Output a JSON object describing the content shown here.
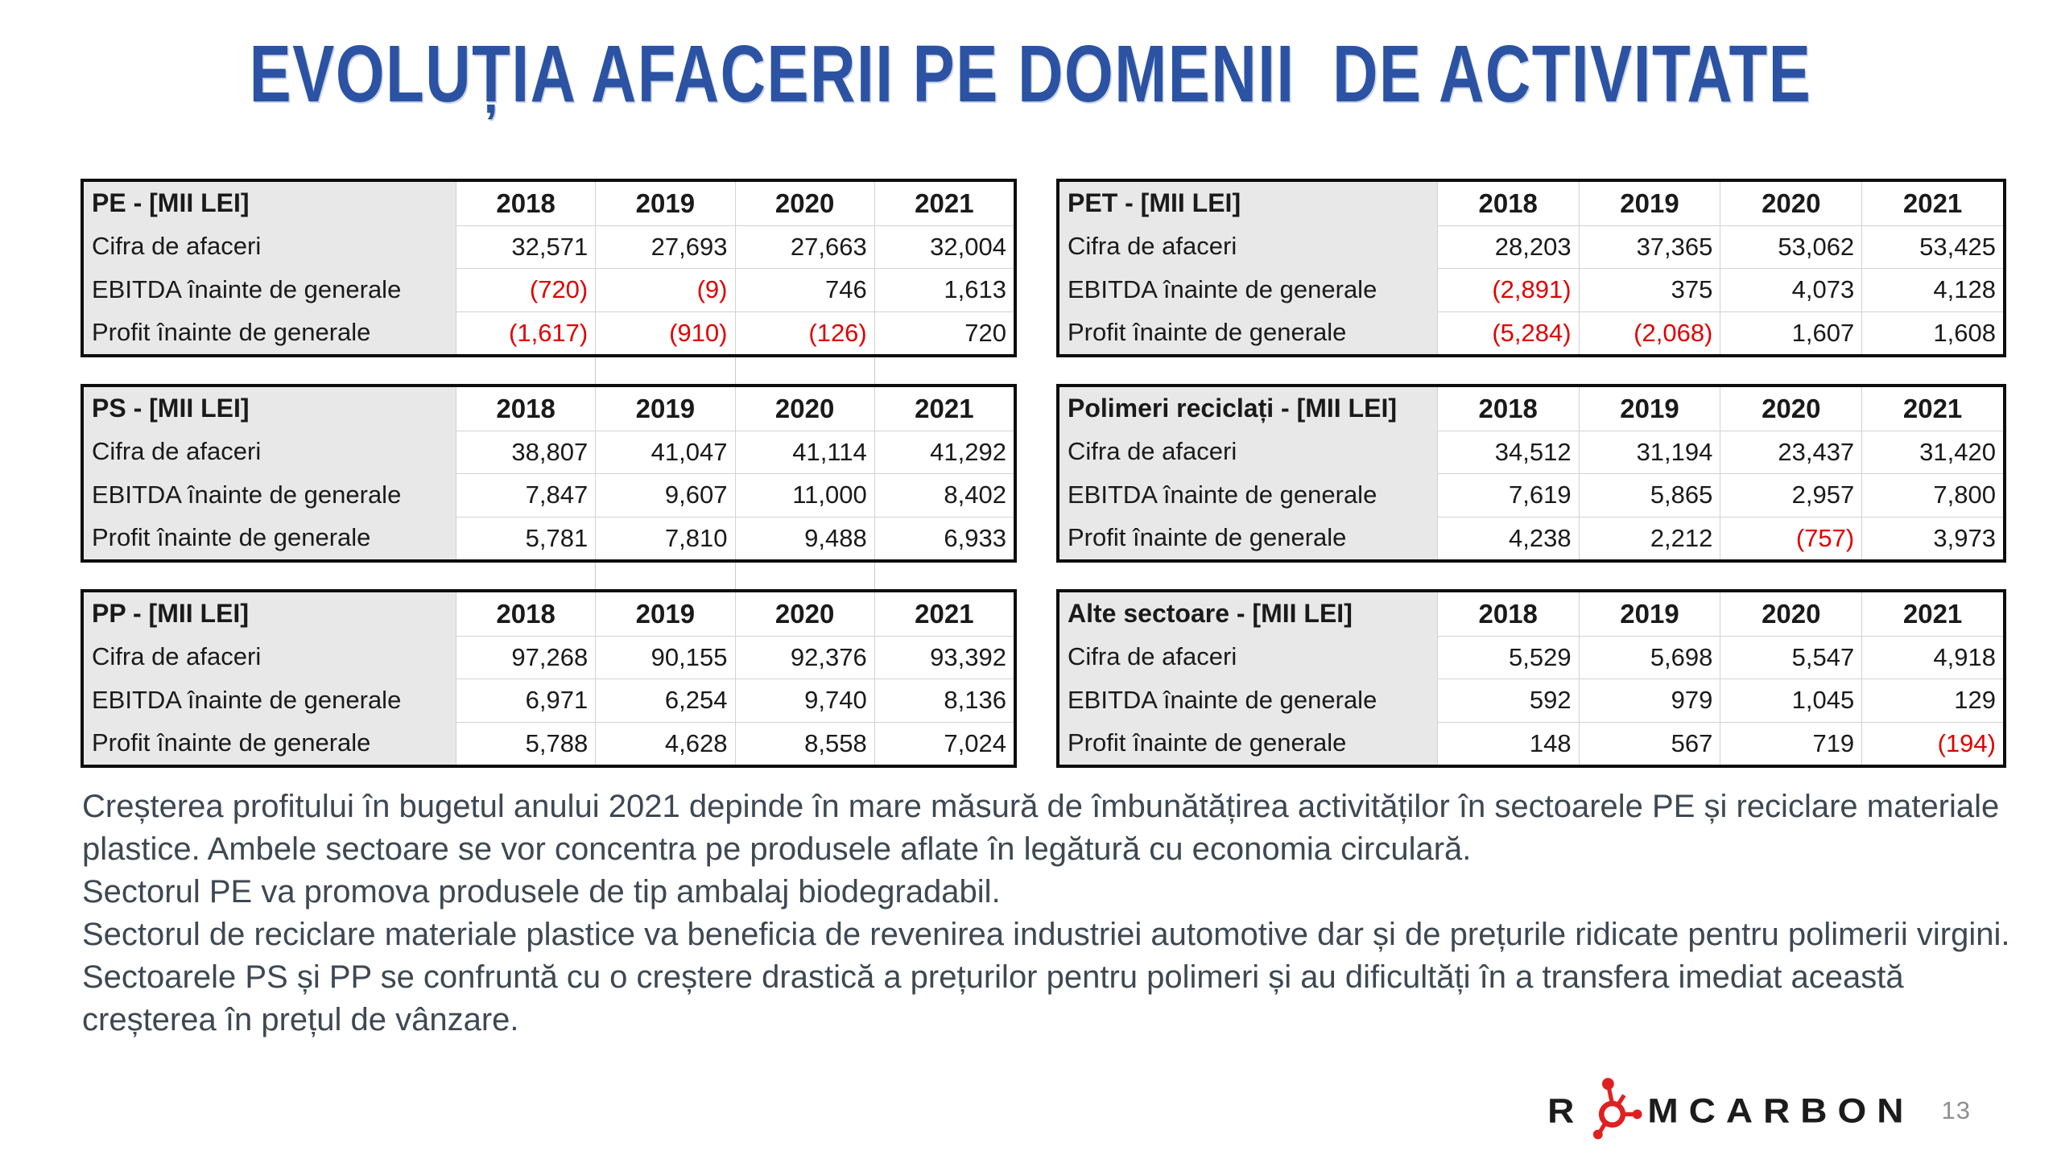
{
  "title": "EVOLUȚIA AFACERII PE DOMENII  DE ACTIVITATE",
  "colors": {
    "title_blue": "#2B52A3",
    "negative_red": "#E00000",
    "body_text": "#3D4852",
    "label_column_bg": "#E9E8E8",
    "table_border": "#0D0D0D",
    "gridline": "#D2D2D2",
    "logo_red": "#E02020"
  },
  "years": [
    "2018",
    "2019",
    "2020",
    "2021"
  ],
  "tables": [
    {
      "name": "PE - [MII LEI]",
      "rows": [
        {
          "label": "Cifra de afaceri",
          "values": [
            "32,571",
            "27,693",
            "27,663",
            "32,004"
          ]
        },
        {
          "label": "EBITDA înainte de generale",
          "values": [
            "(720)",
            "(9)",
            "746",
            "1,613"
          ]
        },
        {
          "label": "Profit înainte de generale",
          "values": [
            "(1,617)",
            "(910)",
            "(126)",
            "720"
          ]
        }
      ]
    },
    {
      "name": "PET - [MII LEI]",
      "rows": [
        {
          "label": "Cifra de afaceri",
          "values": [
            "28,203",
            "37,365",
            "53,062",
            "53,425"
          ]
        },
        {
          "label": "EBITDA înainte de generale",
          "values": [
            "(2,891)",
            "375",
            "4,073",
            "4,128"
          ]
        },
        {
          "label": "Profit înainte de generale",
          "values": [
            "(5,284)",
            "(2,068)",
            "1,607",
            "1,608"
          ]
        }
      ]
    },
    {
      "name": "PS - [MII LEI]",
      "rows": [
        {
          "label": "Cifra de afaceri",
          "values": [
            "38,807",
            "41,047",
            "41,114",
            "41,292"
          ]
        },
        {
          "label": "EBITDA înainte de generale",
          "values": [
            "7,847",
            "9,607",
            "11,000",
            "8,402"
          ]
        },
        {
          "label": "Profit înainte de generale",
          "values": [
            "5,781",
            "7,810",
            "9,488",
            "6,933"
          ]
        }
      ]
    },
    {
      "name": "Polimeri reciclați - [MII LEI]",
      "rows": [
        {
          "label": "Cifra de afaceri",
          "values": [
            "34,512",
            "31,194",
            "23,437",
            "31,420"
          ]
        },
        {
          "label": "EBITDA înainte de generale",
          "values": [
            "7,619",
            "5,865",
            "2,957",
            "7,800"
          ]
        },
        {
          "label": "Profit înainte de generale",
          "values": [
            "4,238",
            "2,212",
            "(757)",
            "3,973"
          ]
        }
      ]
    },
    {
      "name": "PP - [MII LEI]",
      "rows": [
        {
          "label": "Cifra de afaceri",
          "values": [
            "97,268",
            "90,155",
            "92,376",
            "93,392"
          ]
        },
        {
          "label": "EBITDA înainte de generale",
          "values": [
            "6,971",
            "6,254",
            "9,740",
            "8,136"
          ]
        },
        {
          "label": "Profit înainte de generale",
          "values": [
            "5,788",
            "4,628",
            "8,558",
            "7,024"
          ]
        }
      ]
    },
    {
      "name": "Alte sectoare - [MII LEI]",
      "rows": [
        {
          "label": "Cifra de afaceri",
          "values": [
            "5,529",
            "5,698",
            "5,547",
            "4,918"
          ]
        },
        {
          "label": "EBITDA înainte de generale",
          "values": [
            "592",
            "979",
            "1,045",
            "129"
          ]
        },
        {
          "label": "Profit înainte de generale",
          "values": [
            "148",
            "567",
            "719",
            "(194)"
          ]
        }
      ]
    }
  ],
  "commentary": [
    "Creșterea profitului în bugetul anului 2021 depinde în mare măsură de îmbunătățirea activităților în sectoarele PE și reciclare materiale plastice. Ambele sectoare se vor concentra pe produsele aflate în legătură cu economia circulară.",
    "Sectorul PE va promova produsele de tip ambalaj biodegradabil.",
    "Sectorul de reciclare materiale plastice va beneficia de revenirea industriei automotive dar și de prețurile ridicate pentru polimerii virgini.",
    "Sectoarele PS și PP se confruntă cu o creștere drastică a prețurilor pentru polimeri și au dificultăți în a transfera imediat această  creșterea în prețul de vânzare."
  ],
  "footer": {
    "logo_prefix": "R",
    "logo_suffix": "MCARBON",
    "page_number": "13"
  }
}
